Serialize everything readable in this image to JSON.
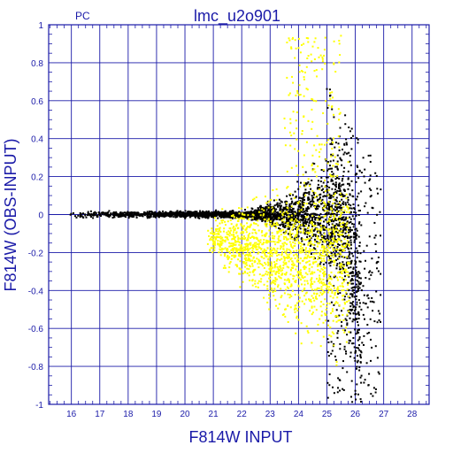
{
  "chart_data": {
    "type": "scatter",
    "title": "lmc_u2o901",
    "panel_label": "PC",
    "xlabel": "F814W INPUT",
    "ylabel": "F814W (OBS-INPUT)",
    "xlim": [
      15.2,
      28.6
    ],
    "ylim": [
      -1,
      1
    ],
    "xticks": [
      "16",
      "17",
      "18",
      "19",
      "20",
      "21",
      "22",
      "23",
      "24",
      "25",
      "26",
      "27",
      "28"
    ],
    "yticks": [
      "1",
      "0.8",
      "0.6",
      "0.4",
      "0.2",
      "0",
      "-0.2",
      "-0.4",
      "-0.6",
      "-0.8",
      "-1"
    ],
    "grid": true,
    "colors": {
      "axis": "#1a1aa8",
      "background": "#ffffff"
    },
    "series": [
      {
        "color": "#000000",
        "description_points": [
          {
            "x": 16.0,
            "y": 0.0
          },
          {
            "x": 18.0,
            "y": 0.0
          },
          {
            "x": 20.0,
            "y": -0.01
          },
          {
            "x": 22.0,
            "y": -0.02
          },
          {
            "x": 23.5,
            "y": -0.05
          },
          {
            "x": 24.5,
            "y": -0.05
          },
          {
            "x": 25.2,
            "y": 0.05
          },
          {
            "x": 25.5,
            "y": 0.35
          },
          {
            "x": 26.0,
            "y": -0.3
          },
          {
            "x": 26.5,
            "y": -0.7
          },
          {
            "x": 26.8,
            "y": -0.95
          }
        ]
      },
      {
        "color": "#ffff00",
        "description_points": [
          {
            "x": 21.0,
            "y": 0.0
          },
          {
            "x": 22.0,
            "y": -0.1
          },
          {
            "x": 23.0,
            "y": -0.15
          },
          {
            "x": 24.0,
            "y": -0.2
          },
          {
            "x": 24.5,
            "y": 0.2
          },
          {
            "x": 25.0,
            "y": 0.5
          },
          {
            "x": 24.2,
            "y": -0.5
          },
          {
            "x": 25.3,
            "y": -0.85
          }
        ]
      }
    ]
  }
}
